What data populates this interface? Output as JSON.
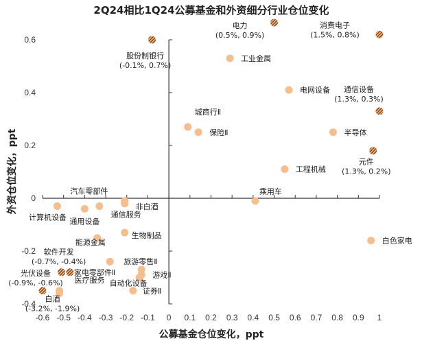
{
  "chart_data": {
    "type": "scatter",
    "title": "2Q24相比1Q24公募基金和外资细分行业仓位变化",
    "xlabel": "公募基金仓位变化，ppt",
    "ylabel": "外资仓位变化，ppt",
    "xlim": [
      -0.6,
      1.0
    ],
    "ylim": [
      -0.4,
      0.6
    ],
    "xticks": [
      "-0.6",
      "-0.5",
      "-0.4",
      "-0.3",
      "-0.2",
      "-0.1",
      "0",
      "0.1",
      "0.2",
      "0.3",
      "0.4",
      "0.5",
      "0.6",
      "0.7",
      "0.8",
      "0.9",
      "1"
    ],
    "yticks": [
      "-0.4",
      "-0.2",
      "0",
      "0.2",
      "0.4",
      "0.6"
    ],
    "grid": false,
    "colors": {
      "point": "#F5BE8C",
      "outlier": "#8B4513"
    },
    "points": [
      {
        "label": "股份制银行",
        "note": "(-0.1%, 0.7%)",
        "x": -0.08,
        "y": 0.6,
        "outlier": true
      },
      {
        "label": "电力",
        "note": "(0.5%, 0.9%)",
        "x": 0.5,
        "y": 0.665,
        "outlier": true
      },
      {
        "label": "消费电子",
        "note": "(1.5%, 0.8%)",
        "x": 1.0,
        "y": 0.62,
        "outlier": true
      },
      {
        "label": "通信设备",
        "note": "(1.3%, 0.3%)",
        "x": 1.0,
        "y": 0.33,
        "outlier": true
      },
      {
        "label": "元件",
        "note": "(1.3%, 0.2%)",
        "x": 0.97,
        "y": 0.18,
        "outlier": true
      },
      {
        "label": "工业金属",
        "x": 0.29,
        "y": 0.53
      },
      {
        "label": "电网设备",
        "x": 0.57,
        "y": 0.41
      },
      {
        "label": "城商行Ⅱ",
        "x": 0.09,
        "y": 0.27
      },
      {
        "label": "保险Ⅱ",
        "x": 0.14,
        "y": 0.25
      },
      {
        "label": "半导体",
        "x": 0.78,
        "y": 0.25
      },
      {
        "label": "工程机械",
        "x": 0.55,
        "y": 0.11
      },
      {
        "label": "乘用车",
        "x": 0.41,
        "y": -0.01
      },
      {
        "label": "白色家电",
        "x": 0.96,
        "y": -0.16
      },
      {
        "label": "计算机设备",
        "x": -0.53,
        "y": -0.03
      },
      {
        "label": "通用设备",
        "x": -0.4,
        "y": -0.04
      },
      {
        "label": "汽车零部件",
        "x": -0.33,
        "y": -0.03
      },
      {
        "label": "非白酒",
        "x": -0.21,
        "y": -0.01
      },
      {
        "label": "通信服务",
        "x": -0.21,
        "y": -0.02
      },
      {
        "label": "生物制品",
        "x": -0.21,
        "y": -0.13
      },
      {
        "label": "能源金属",
        "x": -0.34,
        "y": -0.15
      },
      {
        "label": "软件开发",
        "note": "(-0.7%, -0.4%)",
        "x": -0.51,
        "y": -0.28,
        "outlier": true
      },
      {
        "label": "家电零部件Ⅱ",
        "x": -0.47,
        "y": -0.28,
        "outlier": true
      },
      {
        "label": "光伏设备",
        "note": "(-0.9%, -0.6%)",
        "x": -0.6,
        "y": -0.35,
        "outlier": true
      },
      {
        "label": "医疗服务",
        "x": -0.52,
        "y": -0.35
      },
      {
        "label": "",
        "x": -0.28,
        "y": -0.24
      },
      {
        "label": "旅游零售Ⅱ",
        "x": -0.13,
        "y": -0.27
      },
      {
        "label": "游戏Ⅱ",
        "x": -0.13,
        "y": -0.29
      },
      {
        "label": "自动化设备",
        "x": -0.14,
        "y": -0.3
      },
      {
        "label": "证券Ⅱ",
        "x": -0.17,
        "y": -0.35
      },
      {
        "label": "白酒",
        "note": "(-3.2%, -1.9%)",
        "x": -0.52,
        "y": -0.36
      }
    ]
  }
}
